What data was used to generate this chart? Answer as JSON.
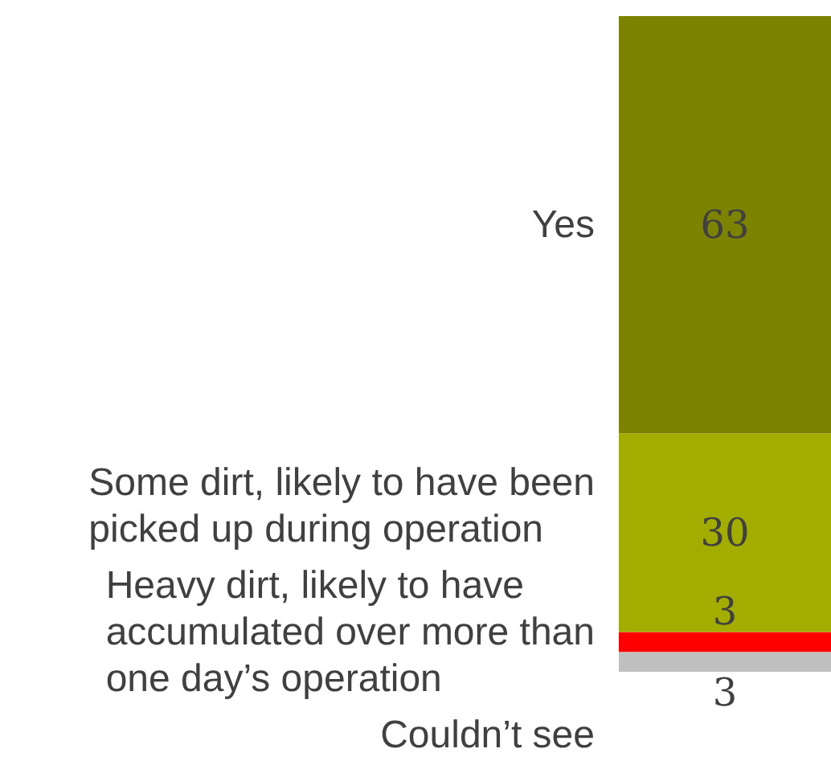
{
  "chart_data": {
    "type": "bar",
    "stacked": true,
    "categories": [
      null
    ],
    "data_labels": true,
    "legend": false,
    "grid": false,
    "series": [
      {
        "name": "Couldn’t see",
        "color": "#c0c0c0",
        "values": [
          3
        ]
      },
      {
        "name": "Heavy dirt, likely to have accumulated over more than one day’s operation",
        "color": "#ff0000",
        "values": [
          3
        ]
      },
      {
        "name": "Some dirt, likely to have been picked up during operation",
        "color": "#a3ad00",
        "values": [
          30
        ]
      },
      {
        "name": "Yes",
        "color": "#7b8300",
        "values": [
          63
        ]
      }
    ]
  }
}
